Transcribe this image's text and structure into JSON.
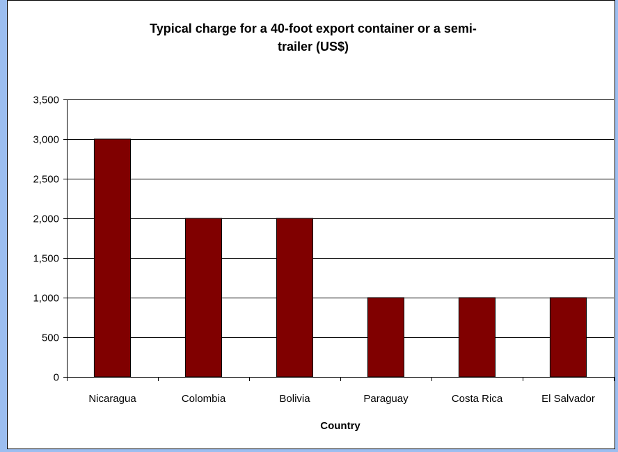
{
  "chart_data": {
    "type": "bar",
    "title_line1": "Typical charge for a 40-foot export container or a semi-",
    "title_line2": "trailer (US$)",
    "xlabel": "Country",
    "ylabel": "",
    "categories": [
      "Nicaragua",
      "Colombia",
      "Bolivia",
      "Paraguay",
      "Costa Rica",
      "El Salvador"
    ],
    "values": [
      3000,
      2000,
      2000,
      1000,
      1000,
      1000
    ],
    "ylim": [
      0,
      3500
    ],
    "yticks": [
      0,
      500,
      1000,
      1500,
      2000,
      2500,
      3000,
      3500
    ],
    "ytick_labels": [
      "0",
      "500",
      "1,000",
      "1,500",
      "2,000",
      "2,500",
      "3,000",
      "3,500"
    ],
    "grid": true,
    "legend": "none",
    "bar_color": "#800000",
    "background_color": "#9cbef0"
  }
}
